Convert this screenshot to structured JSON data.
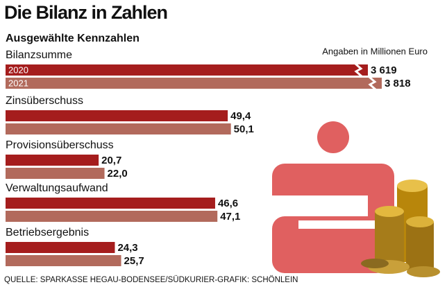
{
  "chart_data": {
    "type": "bar",
    "orientation": "horizontal",
    "title": "Die Bilanz in Zahlen",
    "subtitle": "Ausgewählte Kennzahlen",
    "note": "Angaben in Millionen Euro",
    "source": "QUELLE: SPARKASSE HEGAU-BODENSEE/SÜDKURIER-GRAFIK: SCHÖNLEIN",
    "categories": [
      "Bilanzsumme",
      "Zinsüberschuss",
      "Provisionsüberschuss",
      "Verwaltungsaufwand",
      "Betriebsergebnis"
    ],
    "series": [
      {
        "name": "2020",
        "color": "#a51d1d",
        "values": [
          3619,
          49.4,
          20.7,
          46.6,
          24.3
        ],
        "value_labels": [
          "3 619",
          "49,4",
          "20,7",
          "46,6",
          "24,3"
        ]
      },
      {
        "name": "2021",
        "color": "#b26a5c",
        "values": [
          3818,
          50.1,
          22.0,
          47.1,
          25.7
        ],
        "value_labels": [
          "3 818",
          "50,1",
          "22,0",
          "47,1",
          "25,7"
        ]
      }
    ]
  }
}
